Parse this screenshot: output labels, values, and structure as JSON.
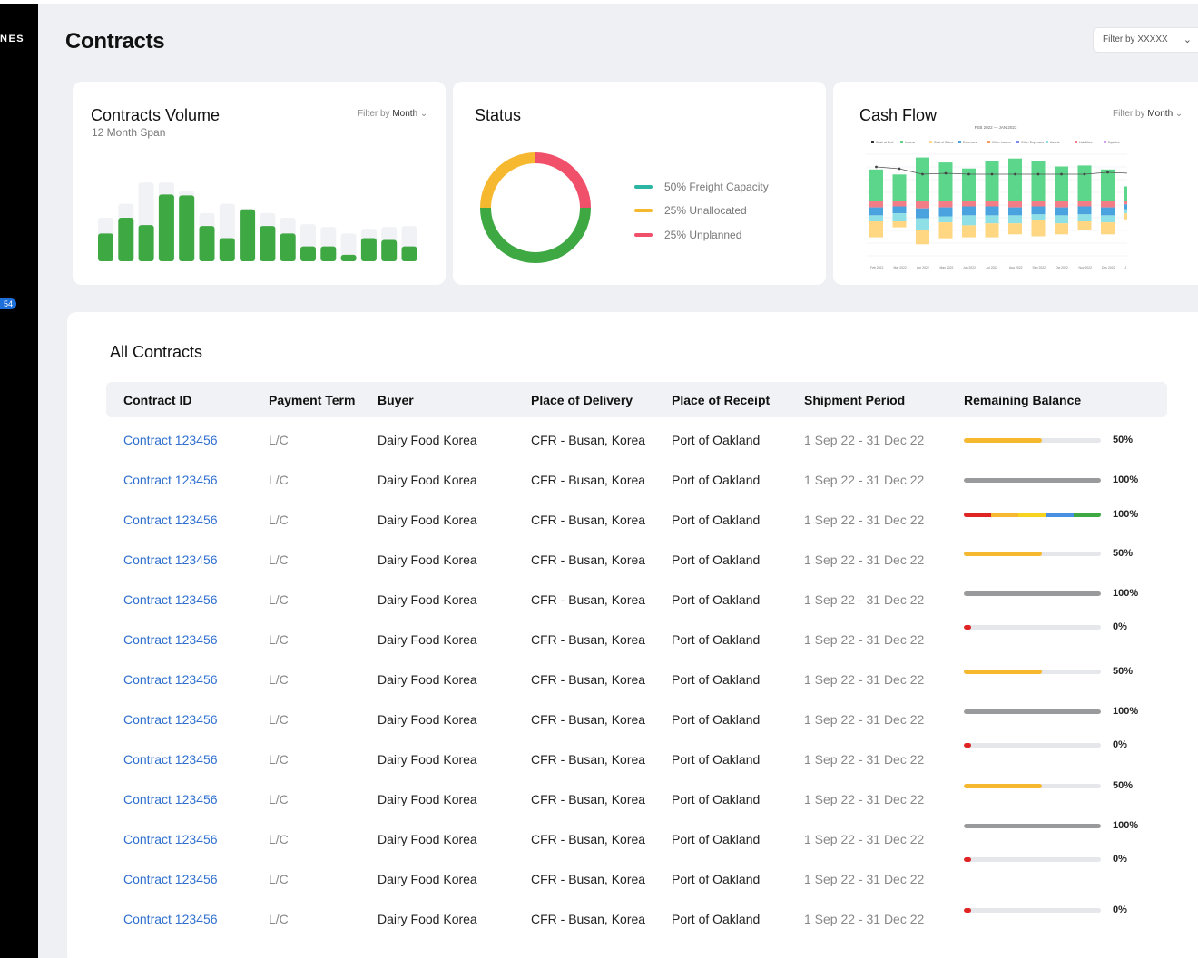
{
  "sidebar": {
    "brand": "NES",
    "badge": "54"
  },
  "header": {
    "title": "Contracts",
    "filter": "Filter by XXXXX"
  },
  "volume_card": {
    "title": "Contracts Volume",
    "subtitle": "12 Month Span",
    "filter_prefix": "Filter by",
    "filter_value": "Month",
    "colors": {
      "bar": "#3ea843",
      "ghost": "#f1f2f5"
    }
  },
  "status_card": {
    "title": "Status",
    "legend": [
      {
        "label": "50% Freight Capacity",
        "color": "#2bb5a3"
      },
      {
        "label": "25% Unallocated",
        "color": "#f5b82e"
      },
      {
        "label": "25% Unplanned",
        "color": "#f0506a"
      }
    ]
  },
  "cashflow_card": {
    "title": "Cash Flow",
    "range": "FEB 2022 — JAN 2023",
    "filter_prefix": "Filter by",
    "filter_value": "Month"
  },
  "table": {
    "title": "All Contracts",
    "headers": [
      "Contract ID",
      "Payment Term",
      "Buyer",
      "Place of Delivery",
      "Place of Receipt",
      "Shipment Period",
      "Remaining Balance"
    ],
    "rows": [
      {
        "id": "Contract 123456",
        "pay": "L/C",
        "buyer": "Dairy Food Korea",
        "pod": "CFR - Busan, Korea",
        "por": "Port of Oakland",
        "ship": "1 Sep 22 - 31 Dec 22",
        "pct": "50%",
        "kind": "yellow",
        "value": 0.57
      },
      {
        "id": "Contract 123456",
        "pay": "L/C",
        "buyer": "Dairy Food Korea",
        "pod": "CFR - Busan, Korea",
        "por": "Port of Oakland",
        "ship": "1 Sep 22 - 31 Dec 22",
        "pct": "100%",
        "kind": "gray",
        "value": 1.0
      },
      {
        "id": "Contract 123456",
        "pay": "L/C",
        "buyer": "Dairy Food Korea",
        "pod": "CFR - Busan, Korea",
        "por": "Port of Oakland",
        "ship": "1 Sep 22 - 31 Dec 22",
        "pct": "100%",
        "kind": "multi",
        "value": 1.0
      },
      {
        "id": "Contract 123456",
        "pay": "L/C",
        "buyer": "Dairy Food Korea",
        "pod": "CFR - Busan, Korea",
        "por": "Port of Oakland",
        "ship": "1 Sep 22 - 31 Dec 22",
        "pct": "50%",
        "kind": "yellow",
        "value": 0.57
      },
      {
        "id": "Contract 123456",
        "pay": "L/C",
        "buyer": "Dairy Food Korea",
        "pod": "CFR - Busan, Korea",
        "por": "Port of Oakland",
        "ship": "1 Sep 22 - 31 Dec 22",
        "pct": "100%",
        "kind": "gray",
        "value": 1.0
      },
      {
        "id": "Contract 123456",
        "pay": "L/C",
        "buyer": "Dairy Food Korea",
        "pod": "CFR - Busan, Korea",
        "por": "Port of Oakland",
        "ship": "1 Sep 22 - 31 Dec 22",
        "pct": "0%",
        "kind": "red",
        "value": 0
      },
      {
        "id": "Contract 123456",
        "pay": "L/C",
        "buyer": "Dairy Food Korea",
        "pod": "CFR - Busan, Korea",
        "por": "Port of Oakland",
        "ship": "1 Sep 22 - 31 Dec 22",
        "pct": "50%",
        "kind": "yellow",
        "value": 0.57
      },
      {
        "id": "Contract 123456",
        "pay": "L/C",
        "buyer": "Dairy Food Korea",
        "pod": "CFR - Busan, Korea",
        "por": "Port of Oakland",
        "ship": "1 Sep 22 - 31 Dec 22",
        "pct": "100%",
        "kind": "gray",
        "value": 1.0
      },
      {
        "id": "Contract 123456",
        "pay": "L/C",
        "buyer": "Dairy Food Korea",
        "pod": "CFR - Busan, Korea",
        "por": "Port of Oakland",
        "ship": "1 Sep 22 - 31 Dec 22",
        "pct": "0%",
        "kind": "red",
        "value": 0
      },
      {
        "id": "Contract 123456",
        "pay": "L/C",
        "buyer": "Dairy Food Korea",
        "pod": "CFR - Busan, Korea",
        "por": "Port of Oakland",
        "ship": "1 Sep 22 - 31 Dec 22",
        "pct": "50%",
        "kind": "yellow",
        "value": 0.57
      },
      {
        "id": "Contract 123456",
        "pay": "L/C",
        "buyer": "Dairy Food Korea",
        "pod": "CFR - Busan, Korea",
        "por": "Port of Oakland",
        "ship": "1 Sep 22 - 31 Dec 22",
        "pct": "100%",
        "kind": "gray",
        "value": 1.0
      },
      {
        "id": "Contract 123456",
        "pay": "L/C",
        "buyer": "Dairy Food Korea",
        "pod": "CFR - Busan, Korea",
        "por": "Port of Oakland",
        "ship": "1 Sep 22 - 31 Dec 22",
        "pct": "0%",
        "kind": "red",
        "value": 0
      },
      {
        "id": "Contract 123456",
        "pay": "L/C",
        "buyer": "Dairy Food Korea",
        "pod": "CFR - Busan, Korea",
        "por": "Port of Oakland",
        "ship": "1 Sep 22 - 31 Dec 22",
        "pct": "0%",
        "kind": "red",
        "value": 0
      }
    ]
  },
  "chart_data": [
    {
      "type": "bar",
      "title": "Contracts Volume",
      "subtitle": "12 Month Span",
      "values": [
        30,
        47,
        39,
        72,
        71,
        38,
        25,
        56,
        38,
        30,
        16,
        16,
        7,
        25,
        23,
        16
      ],
      "background_values": [
        47,
        62,
        85,
        85,
        76,
        52,
        62,
        57,
        52,
        47,
        40,
        37,
        30,
        35,
        37,
        38
      ],
      "ylim": [
        0,
        90
      ]
    },
    {
      "type": "pie",
      "title": "Status",
      "slices": [
        {
          "label": "50% Freight Capacity",
          "value": 50,
          "color": "#3ea843"
        },
        {
          "label": "25% Unallocated",
          "value": 25,
          "color": "#f5b82e"
        },
        {
          "label": "25% Unplanned",
          "value": 25,
          "color": "#f0506a"
        }
      ]
    },
    {
      "type": "bar",
      "title": "Cash Flow",
      "subtitle": "FEB 2022 — JAN 2023",
      "stacked": true,
      "categories": [
        "Feb 2022",
        "Mar 2022",
        "Apr 2022",
        "May 2022",
        "Jun 2022",
        "Jul 2022",
        "Aug 2022",
        "Sep 2022",
        "Oct 2022",
        "Nov 2022",
        "Dec 2022",
        "J"
      ],
      "legend": [
        "Cash at End",
        "Income",
        "Cost of Sales",
        "Expenses",
        "Other Income",
        "Other Expenses",
        "Assets",
        "Liabilities",
        "Equities"
      ],
      "series": [
        {
          "name": "Income",
          "values": [
            32,
            27,
            44,
            39,
            33,
            40,
            43,
            40,
            35,
            36,
            32,
            15
          ],
          "color": "#5bd68a"
        },
        {
          "name": "Liabilities",
          "values": [
            6,
            5,
            7,
            6,
            5,
            5,
            6,
            5,
            6,
            5,
            6,
            3
          ],
          "color": "#f37d86"
        },
        {
          "name": "Expenses",
          "values": [
            8,
            7,
            10,
            9,
            9,
            9,
            8,
            8,
            8,
            8,
            8,
            5
          ],
          "color": "#4aa3df"
        },
        {
          "name": "Assets",
          "values": [
            6,
            8,
            12,
            6,
            10,
            8,
            8,
            6,
            8,
            7,
            7,
            4
          ],
          "color": "#8fe0e6"
        },
        {
          "name": "Other Income",
          "values": [
            16,
            6,
            14,
            16,
            12,
            14,
            11,
            16,
            11,
            9,
            12,
            6
          ],
          "color": "#ffd783"
        }
      ],
      "line": {
        "name": "Cash at End",
        "values": [
          70,
          68,
          62,
          63,
          62,
          62,
          62,
          62,
          62,
          62,
          64,
          63
        ]
      }
    }
  ]
}
